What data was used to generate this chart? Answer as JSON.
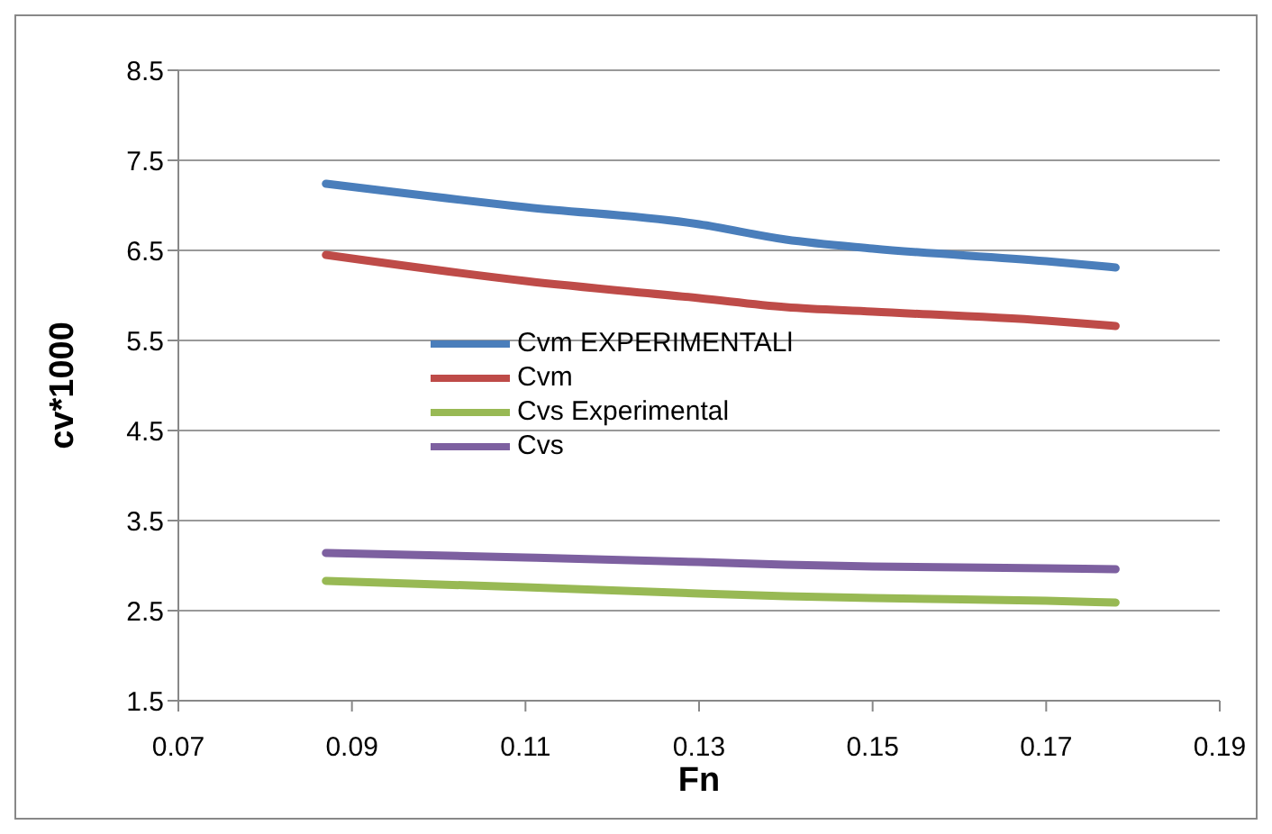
{
  "chart_data": {
    "type": "line",
    "xlabel": "Fn",
    "ylabel": "cv*1000",
    "xlim": [
      0.07,
      0.19
    ],
    "xticks": [
      0.07,
      0.09,
      0.11,
      0.13,
      0.15,
      0.17,
      0.19
    ],
    "ylim": [
      1.5,
      8.5
    ],
    "yticks": [
      1.5,
      2.5,
      3.5,
      4.5,
      5.5,
      6.5,
      7.5,
      8.5
    ],
    "grid": "y",
    "legend": "left",
    "marker": "none",
    "line_style": "solid",
    "x": [
      0.087,
      0.11,
      0.13,
      0.14,
      0.15,
      0.17,
      0.178
    ],
    "series": [
      {
        "name": "Cvm EXPERIMENTALl",
        "color": "#4a7ebb",
        "values": [
          7.24,
          6.98,
          6.79,
          6.62,
          6.52,
          6.38,
          6.31
        ]
      },
      {
        "name": "Cvm",
        "color": "#be4b48",
        "values": [
          6.45,
          6.16,
          5.97,
          5.87,
          5.82,
          5.72,
          5.66
        ]
      },
      {
        "name": "Cvs Experimental",
        "color": "#98b954",
        "values": [
          2.83,
          2.76,
          2.69,
          2.66,
          2.64,
          2.61,
          2.59
        ]
      },
      {
        "name": "Cvs",
        "color": "#7d60a0",
        "values": [
          3.14,
          3.09,
          3.04,
          3.01,
          2.99,
          2.97,
          2.96
        ]
      }
    ]
  }
}
